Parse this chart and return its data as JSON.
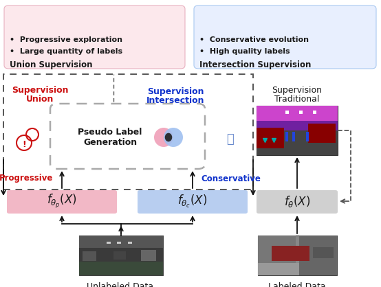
{
  "bg_color": "#ffffff",
  "pink_box_color": "#f2b8c6",
  "blue_box_color": "#b8cef0",
  "gray_box_color": "#d0d0d0",
  "pink_legend_color": "#fce8ec",
  "blue_legend_color": "#e8effe",
  "red_text": "#cc1111",
  "blue_text": "#1133cc",
  "dark_text": "#1a1a1a",
  "arrow_color": "#111111",
  "dashed_color": "#888888",
  "gray_dashed_color": "#aaaaaa",
  "unlabeled_label": "Unlabeled Data",
  "labeled_label": "Labeled Data",
  "fp_label": "$f_{\\theta_p}(X)$",
  "fc_label": "$f_{\\theta_c}(X)$",
  "ft_label": "$f_{\\theta}(X)$",
  "progressive_label": "Progressive",
  "conservative_label": "Conservative",
  "pseudo_label": "Pseudo Label\nGeneration",
  "union_label": "Union",
  "intersection_label": "Intersection",
  "supervision_label": "Supervision",
  "traditional_label": "Traditional\nSupervision",
  "union_box_title": "Union Supervision",
  "union_bullet1": "Large quantity of labels",
  "union_bullet2": "Progressive exploration",
  "inter_box_title": "Intersection Supervision",
  "inter_bullet1": "High quality labels",
  "inter_bullet2": "Conservative evolution"
}
